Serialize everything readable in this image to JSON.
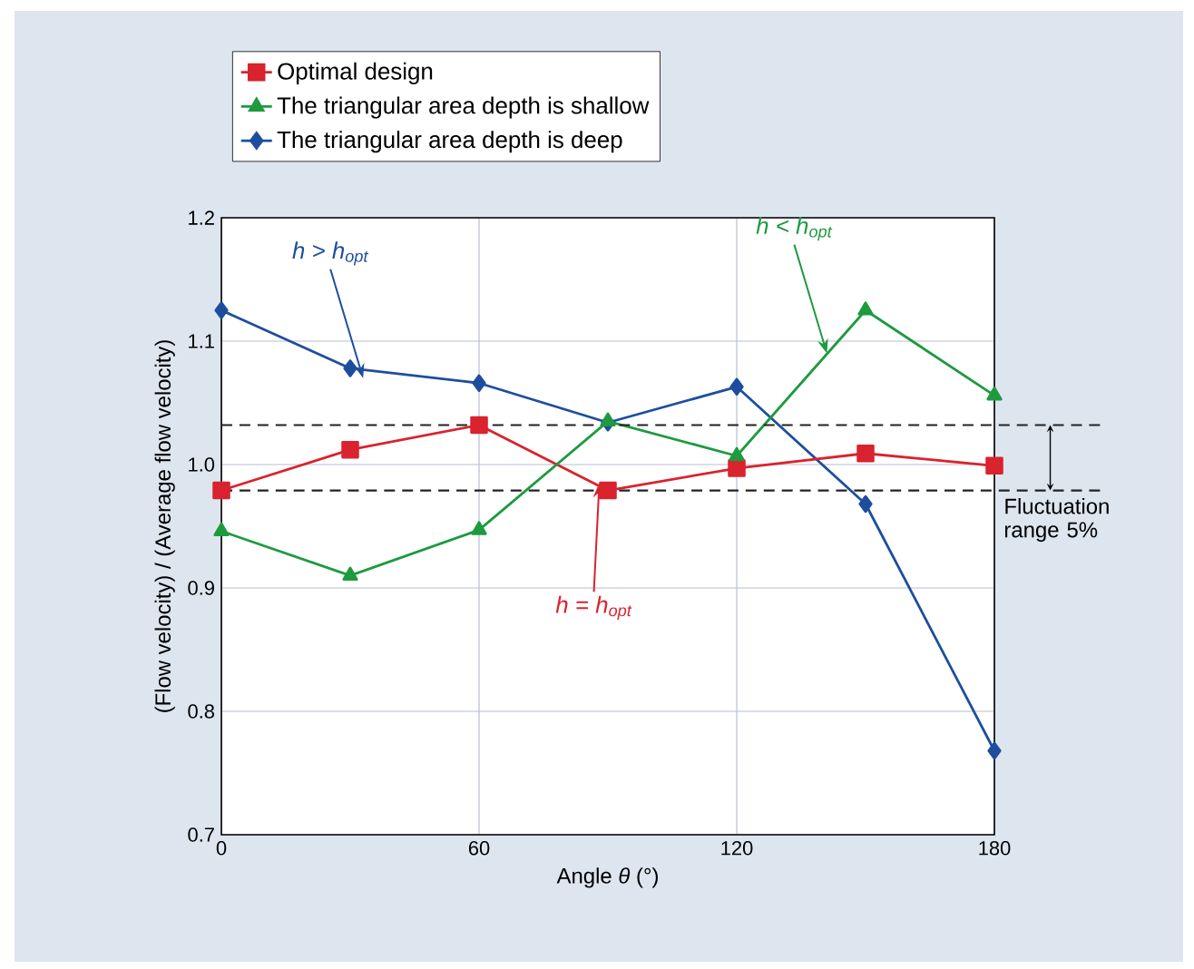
{
  "chart_data": {
    "type": "line",
    "xlabel": "Angle *θ* (°)",
    "ylabel": "(Flow velocity) / (Average flow velocity)",
    "x": [
      0,
      30,
      60,
      90,
      120,
      150,
      180
    ],
    "series": [
      {
        "name": "Optimal design",
        "color": "#d9232e",
        "marker": "square",
        "values": [
          0.979,
          1.012,
          1.032,
          0.979,
          0.997,
          1.009,
          0.999
        ]
      },
      {
        "name": "The triangular area depth is shallow",
        "color": "#1e9a3f",
        "marker": "triangle",
        "values": [
          0.946,
          0.91,
          0.947,
          1.035,
          1.007,
          1.125,
          1.056
        ]
      },
      {
        "name": "The triangular area depth is deep",
        "color": "#1d4e9e",
        "marker": "diamond",
        "values": [
          1.125,
          1.078,
          1.066,
          1.034,
          1.063,
          0.968,
          0.768
        ]
      }
    ],
    "xlim": [
      0,
      180
    ],
    "xticks": [
      0,
      60,
      120,
      180
    ],
    "ylim": [
      0.7,
      1.2
    ],
    "yticks": [
      {
        "value": 0.7,
        "label": "0.7"
      },
      {
        "value": 0.8,
        "label": "0.8"
      },
      {
        "value": 0.9,
        "label": "0.9"
      },
      {
        "value": 1.0,
        "label": "1.0"
      },
      {
        "value": 1.1,
        "label": "1.1"
      },
      {
        "value": 1.2,
        "label": "1.2"
      }
    ],
    "grid": true,
    "legend": "top left",
    "line_style": "solid",
    "ref_lines": [
      {
        "axis": "y",
        "value": 1.032,
        "color": "#222222",
        "line_style": "dashed"
      },
      {
        "axis": "y",
        "value": 0.979,
        "color": "#222222",
        "line_style": "dashed",
        "label": "Fluctuation range 5%"
      }
    ],
    "annotations": [
      {
        "text": "h > h$_{opt}$",
        "x": 33,
        "y": 1.07
      },
      {
        "text": "h < h$_{opt}$",
        "x": 141,
        "y": 1.09
      },
      {
        "text": "h = h$_{opt}$",
        "x": 88,
        "y": 0.985
      }
    ]
  }
}
